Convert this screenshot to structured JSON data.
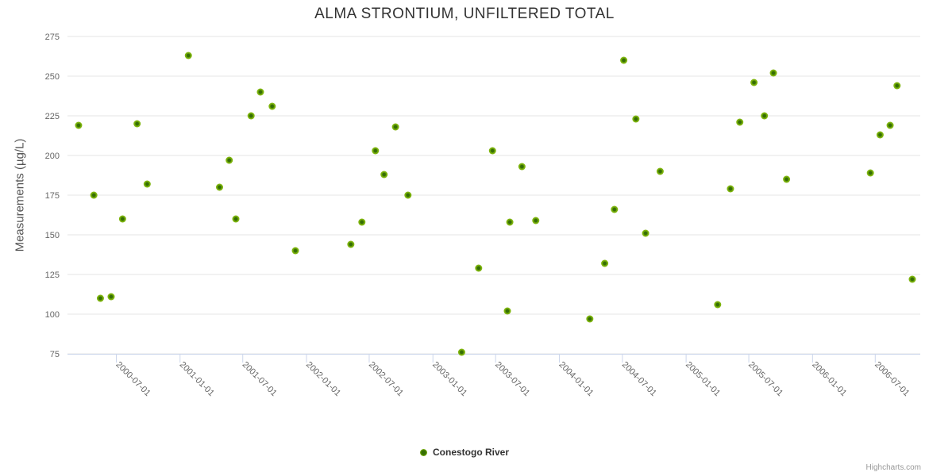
{
  "title": "ALMA STRONTIUM, UNFILTERED TOTAL",
  "legend": {
    "items": [
      {
        "label": "Conestogo River"
      }
    ]
  },
  "credits": {
    "label": "Highcharts.com"
  },
  "colors": {
    "title": "#333333",
    "labels": "#666666",
    "grid": "#e6e6e6",
    "axis_line": "#ccd6eb",
    "marker_outer": "#7bb30b",
    "marker_inner": "#356e04"
  },
  "chart_data": {
    "type": "scatter",
    "title": "ALMA STRONTIUM, UNFILTERED TOTAL",
    "xlabel": "",
    "ylabel": "Measurements (µg/L)",
    "x_type": "datetime",
    "x_min": "2000-02-11",
    "x_max": "2006-11-08",
    "ylim": [
      75,
      275
    ],
    "y_ticks": [
      75,
      100,
      125,
      150,
      175,
      200,
      225,
      250,
      275
    ],
    "x_ticks": [
      "2000-07-01",
      "2001-01-01",
      "2001-07-01",
      "2002-01-01",
      "2002-07-01",
      "2003-01-01",
      "2003-07-01",
      "2004-01-01",
      "2004-07-01",
      "2005-01-01",
      "2005-07-01",
      "2006-01-01",
      "2006-07-01"
    ],
    "grid": "horizontal",
    "legend_position": "bottom-center",
    "series": [
      {
        "name": "Conestogo River",
        "points": [
          [
            "2000-03-14",
            219
          ],
          [
            "2000-04-27",
            175
          ],
          [
            "2000-05-16",
            110
          ],
          [
            "2000-06-16",
            111
          ],
          [
            "2000-07-19",
            160
          ],
          [
            "2000-08-30",
            220
          ],
          [
            "2000-09-28",
            182
          ],
          [
            "2001-01-25",
            263
          ],
          [
            "2001-04-25",
            180
          ],
          [
            "2001-05-23",
            197
          ],
          [
            "2001-06-11",
            160
          ],
          [
            "2001-07-25",
            225
          ],
          [
            "2001-08-21",
            240
          ],
          [
            "2001-09-24",
            231
          ],
          [
            "2001-11-30",
            140
          ],
          [
            "2002-05-09",
            144
          ],
          [
            "2002-06-10",
            158
          ],
          [
            "2002-07-19",
            203
          ],
          [
            "2002-08-13",
            188
          ],
          [
            "2002-09-15",
            218
          ],
          [
            "2002-10-21",
            175
          ],
          [
            "2003-03-25",
            76
          ],
          [
            "2003-05-13",
            129
          ],
          [
            "2003-06-22",
            203
          ],
          [
            "2003-08-04",
            102
          ],
          [
            "2003-08-11",
            158
          ],
          [
            "2003-09-15",
            193
          ],
          [
            "2003-10-25",
            159
          ],
          [
            "2004-03-29",
            97
          ],
          [
            "2004-05-11",
            132
          ],
          [
            "2004-06-08",
            166
          ],
          [
            "2004-07-05",
            260
          ],
          [
            "2004-08-09",
            223
          ],
          [
            "2004-09-06",
            151
          ],
          [
            "2004-10-18",
            190
          ],
          [
            "2005-04-02",
            106
          ],
          [
            "2005-05-09",
            179
          ],
          [
            "2005-06-05",
            221
          ],
          [
            "2005-07-16",
            246
          ],
          [
            "2005-08-15",
            225
          ],
          [
            "2005-09-10",
            252
          ],
          [
            "2005-10-18",
            185
          ],
          [
            "2006-06-17",
            189
          ],
          [
            "2006-07-15",
            213
          ],
          [
            "2006-08-13",
            219
          ],
          [
            "2006-09-02",
            244
          ],
          [
            "2006-10-16",
            122
          ]
        ]
      }
    ]
  }
}
